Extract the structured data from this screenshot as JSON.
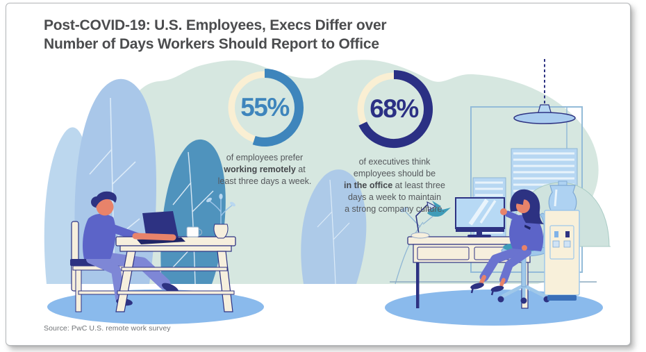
{
  "title": {
    "line1": "Post-COVID-19: U.S. Employees, Execs Differ over",
    "line2": "Number of Days Workers Should Report to Office"
  },
  "source": "Source: PwC U.S. remote work survey",
  "chart_data": [
    {
      "type": "donut",
      "label": "55%",
      "value": 55,
      "max": 100,
      "arc_color": "#3e85bc",
      "track_color": "#faefd3",
      "caption_text": "of employees prefer working remotely at least three days a week.",
      "caption_lines": [
        [
          {
            "text": "of employees prefer"
          }
        ],
        [
          {
            "text": "working remotely",
            "bold": true
          },
          {
            "text": " at"
          }
        ],
        [
          {
            "text": "least three days a week."
          }
        ]
      ]
    },
    {
      "type": "donut",
      "label": "68%",
      "value": 68,
      "max": 100,
      "arc_color": "#2b3084",
      "track_color": "#faefd3",
      "caption_text": "of executives think employees should be in the office at least three days a week to maintain a strong company culture.",
      "caption_lines": [
        [
          {
            "text": "of executives think"
          }
        ],
        [
          {
            "text": "employees should be"
          }
        ],
        [
          {
            "text": "in the office",
            "bold": true
          },
          {
            "text": " at least three"
          }
        ],
        [
          {
            "text": "days a week to maintain"
          }
        ],
        [
          {
            "text": "a strong company culture."
          }
        ]
      ]
    }
  ],
  "palette": {
    "background_blob": "#d6e7e0",
    "ground_shadow": "#8abaec",
    "outline_navy": "#2d3282",
    "furniture_cream": "#f6efdd",
    "accent_teal": "#3f9cb8",
    "leaf_light_blue": "#a9c7e9",
    "leaf_steel_blue": "#4f93bd",
    "skin": "#e8836a",
    "clothing_purple": "#5c64c8",
    "blinds_blue": "#b7d7f2"
  }
}
